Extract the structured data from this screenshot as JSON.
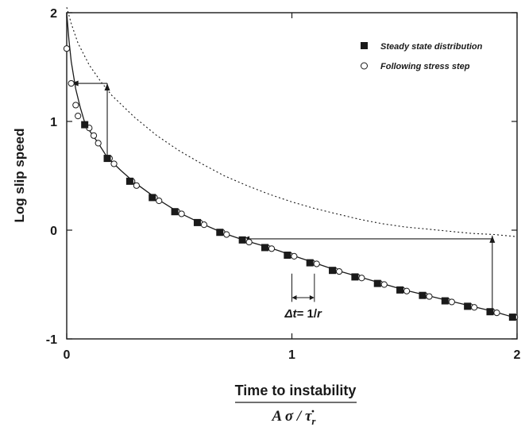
{
  "chart_data": {
    "type": "scatter",
    "ylabel": "Log slip speed",
    "xlabel_numerator": "Time to instability",
    "xlabel_denominator": "A σ / τ̇",
    "xlabel_subscript": "r",
    "xlim": [
      0,
      2
    ],
    "ylim": [
      -1,
      2
    ],
    "xticks": [
      "0",
      "1",
      "2"
    ],
    "yticks": [
      "-1",
      "0",
      "1",
      "2"
    ],
    "grid": false,
    "legend_position": "top-right",
    "series": [
      {
        "name": "Steady state distribution",
        "marker": "filled-square",
        "points": [
          [
            0.08,
            0.97
          ],
          [
            0.18,
            0.66
          ],
          [
            0.28,
            0.45
          ],
          [
            0.38,
            0.3
          ],
          [
            0.48,
            0.17
          ],
          [
            0.58,
            0.07
          ],
          [
            0.68,
            -0.02
          ],
          [
            0.78,
            -0.09
          ],
          [
            0.88,
            -0.16
          ],
          [
            0.98,
            -0.23
          ],
          [
            1.08,
            -0.3
          ],
          [
            1.18,
            -0.37
          ],
          [
            1.28,
            -0.43
          ],
          [
            1.38,
            -0.49
          ],
          [
            1.48,
            -0.55
          ],
          [
            1.58,
            -0.6
          ],
          [
            1.68,
            -0.65
          ],
          [
            1.78,
            -0.7
          ],
          [
            1.88,
            -0.75
          ],
          [
            1.98,
            -0.8
          ]
        ]
      },
      {
        "name": "Following stress step",
        "marker": "open-circle",
        "points": [
          [
            0.0,
            1.67
          ],
          [
            0.02,
            1.35
          ],
          [
            0.04,
            1.15
          ],
          [
            0.05,
            1.05
          ],
          [
            0.1,
            0.94
          ],
          [
            0.12,
            0.87
          ],
          [
            0.14,
            0.8
          ],
          [
            0.19,
            0.66
          ],
          [
            0.21,
            0.61
          ],
          [
            0.29,
            0.45
          ],
          [
            0.31,
            0.41
          ],
          [
            0.39,
            0.3
          ],
          [
            0.41,
            0.27
          ],
          [
            0.49,
            0.17
          ],
          [
            0.51,
            0.15
          ],
          [
            0.59,
            0.07
          ],
          [
            0.61,
            0.05
          ],
          [
            0.69,
            -0.02
          ],
          [
            0.71,
            -0.04
          ],
          [
            0.79,
            -0.09
          ],
          [
            0.81,
            -0.11
          ],
          [
            0.89,
            -0.16
          ],
          [
            0.91,
            -0.17
          ],
          [
            0.99,
            -0.23
          ],
          [
            1.01,
            -0.24
          ],
          [
            1.09,
            -0.3
          ],
          [
            1.11,
            -0.31
          ],
          [
            1.19,
            -0.37
          ],
          [
            1.21,
            -0.38
          ],
          [
            1.29,
            -0.43
          ],
          [
            1.31,
            -0.44
          ],
          [
            1.39,
            -0.49
          ],
          [
            1.41,
            -0.5
          ],
          [
            1.49,
            -0.55
          ],
          [
            1.51,
            -0.56
          ],
          [
            1.59,
            -0.6
          ],
          [
            1.61,
            -0.61
          ],
          [
            1.69,
            -0.65
          ],
          [
            1.71,
            -0.66
          ],
          [
            1.79,
            -0.7
          ],
          [
            1.81,
            -0.71
          ],
          [
            1.89,
            -0.75
          ],
          [
            1.91,
            -0.76
          ],
          [
            1.99,
            -0.8
          ]
        ]
      }
    ],
    "solid_curve": [
      [
        0.0,
        2.0
      ],
      [
        0.01,
        1.75
      ],
      [
        0.02,
        1.55
      ],
      [
        0.04,
        1.3
      ],
      [
        0.06,
        1.13
      ],
      [
        0.08,
        0.99
      ],
      [
        0.1,
        0.92
      ],
      [
        0.14,
        0.8
      ],
      [
        0.18,
        0.67
      ],
      [
        0.24,
        0.55
      ],
      [
        0.3,
        0.44
      ],
      [
        0.4,
        0.29
      ],
      [
        0.5,
        0.16
      ],
      [
        0.6,
        0.06
      ],
      [
        0.7,
        -0.03
      ],
      [
        0.8,
        -0.1
      ],
      [
        0.9,
        -0.16
      ],
      [
        1.0,
        -0.23
      ],
      [
        1.1,
        -0.3
      ],
      [
        1.2,
        -0.37
      ],
      [
        1.3,
        -0.43
      ],
      [
        1.4,
        -0.49
      ],
      [
        1.5,
        -0.55
      ],
      [
        1.6,
        -0.6
      ],
      [
        1.7,
        -0.65
      ],
      [
        1.8,
        -0.7
      ],
      [
        1.9,
        -0.75
      ],
      [
        2.0,
        -0.81
      ]
    ],
    "dotted_curve": [
      [
        0.0,
        2.05
      ],
      [
        0.02,
        1.9
      ],
      [
        0.05,
        1.72
      ],
      [
        0.1,
        1.52
      ],
      [
        0.15,
        1.37
      ],
      [
        0.2,
        1.24
      ],
      [
        0.3,
        1.04
      ],
      [
        0.4,
        0.87
      ],
      [
        0.5,
        0.73
      ],
      [
        0.6,
        0.61
      ],
      [
        0.7,
        0.5
      ],
      [
        0.8,
        0.41
      ],
      [
        0.9,
        0.33
      ],
      [
        1.0,
        0.26
      ],
      [
        1.1,
        0.2
      ],
      [
        1.2,
        0.15
      ],
      [
        1.3,
        0.1
      ],
      [
        1.4,
        0.06
      ],
      [
        1.5,
        0.03
      ],
      [
        1.6,
        0.01
      ],
      [
        1.7,
        -0.01
      ],
      [
        1.8,
        -0.03
      ],
      [
        1.9,
        -0.04
      ],
      [
        2.0,
        -0.06
      ]
    ],
    "arrows": [
      {
        "from": [
          0.18,
          0.67
        ],
        "to": [
          0.18,
          1.35
        ]
      },
      {
        "from": [
          0.18,
          1.35
        ],
        "to": [
          0.02,
          1.35
        ]
      },
      {
        "from": [
          1.89,
          -0.75
        ],
        "to": [
          1.89,
          -0.05
        ]
      },
      {
        "from": [
          1.89,
          -0.08
        ],
        "to": [
          0.78,
          -0.08
        ]
      }
    ],
    "annotation": {
      "delta_t": "Δt",
      "equals": "= 1/",
      "r": "r",
      "x_start": 1.0,
      "x_end": 1.1,
      "label_x": 1.05,
      "label_y": -0.7
    },
    "colors": {
      "ink": "#1a1a1a",
      "background": "#ffffff"
    }
  }
}
